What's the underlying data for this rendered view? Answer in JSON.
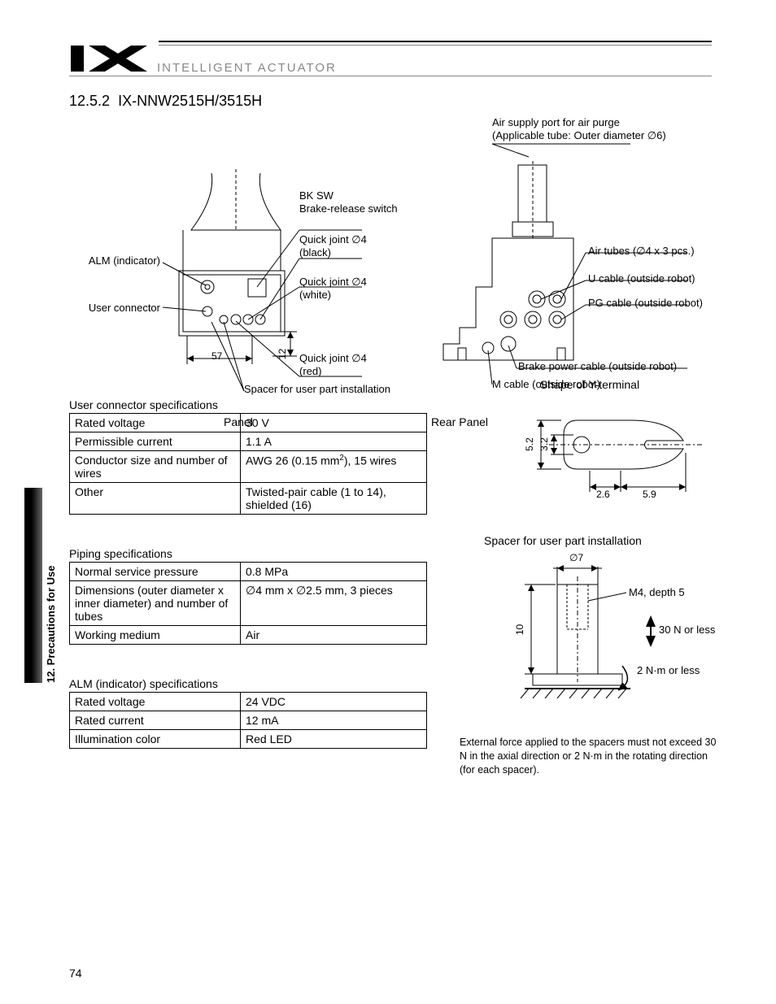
{
  "header": {
    "brand": "INTELLIGENT ACTUATOR"
  },
  "section": {
    "number": "12.5.2",
    "title": "IX-NNW2515H/3515H"
  },
  "side_tab_label": "12. Precautions for Use",
  "page_number": "74",
  "panel": {
    "caption": "Panel",
    "callouts": {
      "alm": "ALM (indicator)",
      "user_conn": "User connector",
      "bk_sw_line1": "BK SW",
      "bk_sw_line2": "Brake-release switch",
      "qj_black_line1": "Quick joint ∅4",
      "qj_black_line2": "(black)",
      "qj_white_line1": "Quick joint ∅4",
      "qj_white_line2": "(white)",
      "qj_red_line1": "Quick joint ∅4",
      "qj_red_line2": "(red)",
      "spacer_note": "Spacer for user part installation",
      "dim_57": "57",
      "dim_12": "12"
    }
  },
  "rear": {
    "caption": "Rear Panel",
    "callouts": {
      "air_supply_line1": "Air supply port for air purge",
      "air_supply_line2": "(Applicable tube: Outer diameter ∅6)",
      "air_tubes": "Air tubes (∅4 x 3 pcs.)",
      "u_cable": "U cable (outside robot)",
      "pg_cable": "PG cable (outside robot)",
      "brake_cable": "Brake power cable (outside robot)",
      "m_cable": "M cable (outside robot)"
    }
  },
  "tables": {
    "user_conn": {
      "title": "User connector specifications",
      "rows": [
        [
          "Rated voltage",
          "30 V"
        ],
        [
          "Permissible current",
          "1.1 A"
        ],
        [
          "Conductor size and number of wires",
          "AWG 26 (0.15 mm²), 15 wires"
        ],
        [
          "Other",
          "Twisted-pair cable (1 to 14), shielded (16)"
        ]
      ]
    },
    "piping": {
      "title": "Piping specifications",
      "rows": [
        [
          "Normal service pressure",
          "0.8 MPa"
        ],
        [
          "Dimensions (outer diameter x inner diameter) and number of tubes",
          "∅4 mm x ∅2.5 mm, 3 pieces"
        ],
        [
          "Working medium",
          "Air"
        ]
      ]
    },
    "alm": {
      "title": "ALM (indicator) specifications",
      "rows": [
        [
          "Rated voltage",
          "24 VDC"
        ],
        [
          "Rated current",
          "12 mA"
        ],
        [
          "Illumination color",
          "Red LED"
        ]
      ]
    }
  },
  "y_terminal": {
    "title": "Shape of Y-terminal",
    "dims": {
      "a": "5.2",
      "b": "3.2",
      "c": "2.6",
      "d": "5.9"
    }
  },
  "spacer": {
    "title": "Spacer for user part installation",
    "labels": {
      "dia7": "∅7",
      "m4": "M4, depth 5",
      "force_n": "30 N or less",
      "torque": "2 N·m or less",
      "h10": "10"
    },
    "note": "External force applied to the spacers must not exceed 30 N in the axial direction or 2 N·m in the rotating direction (for each spacer)."
  }
}
